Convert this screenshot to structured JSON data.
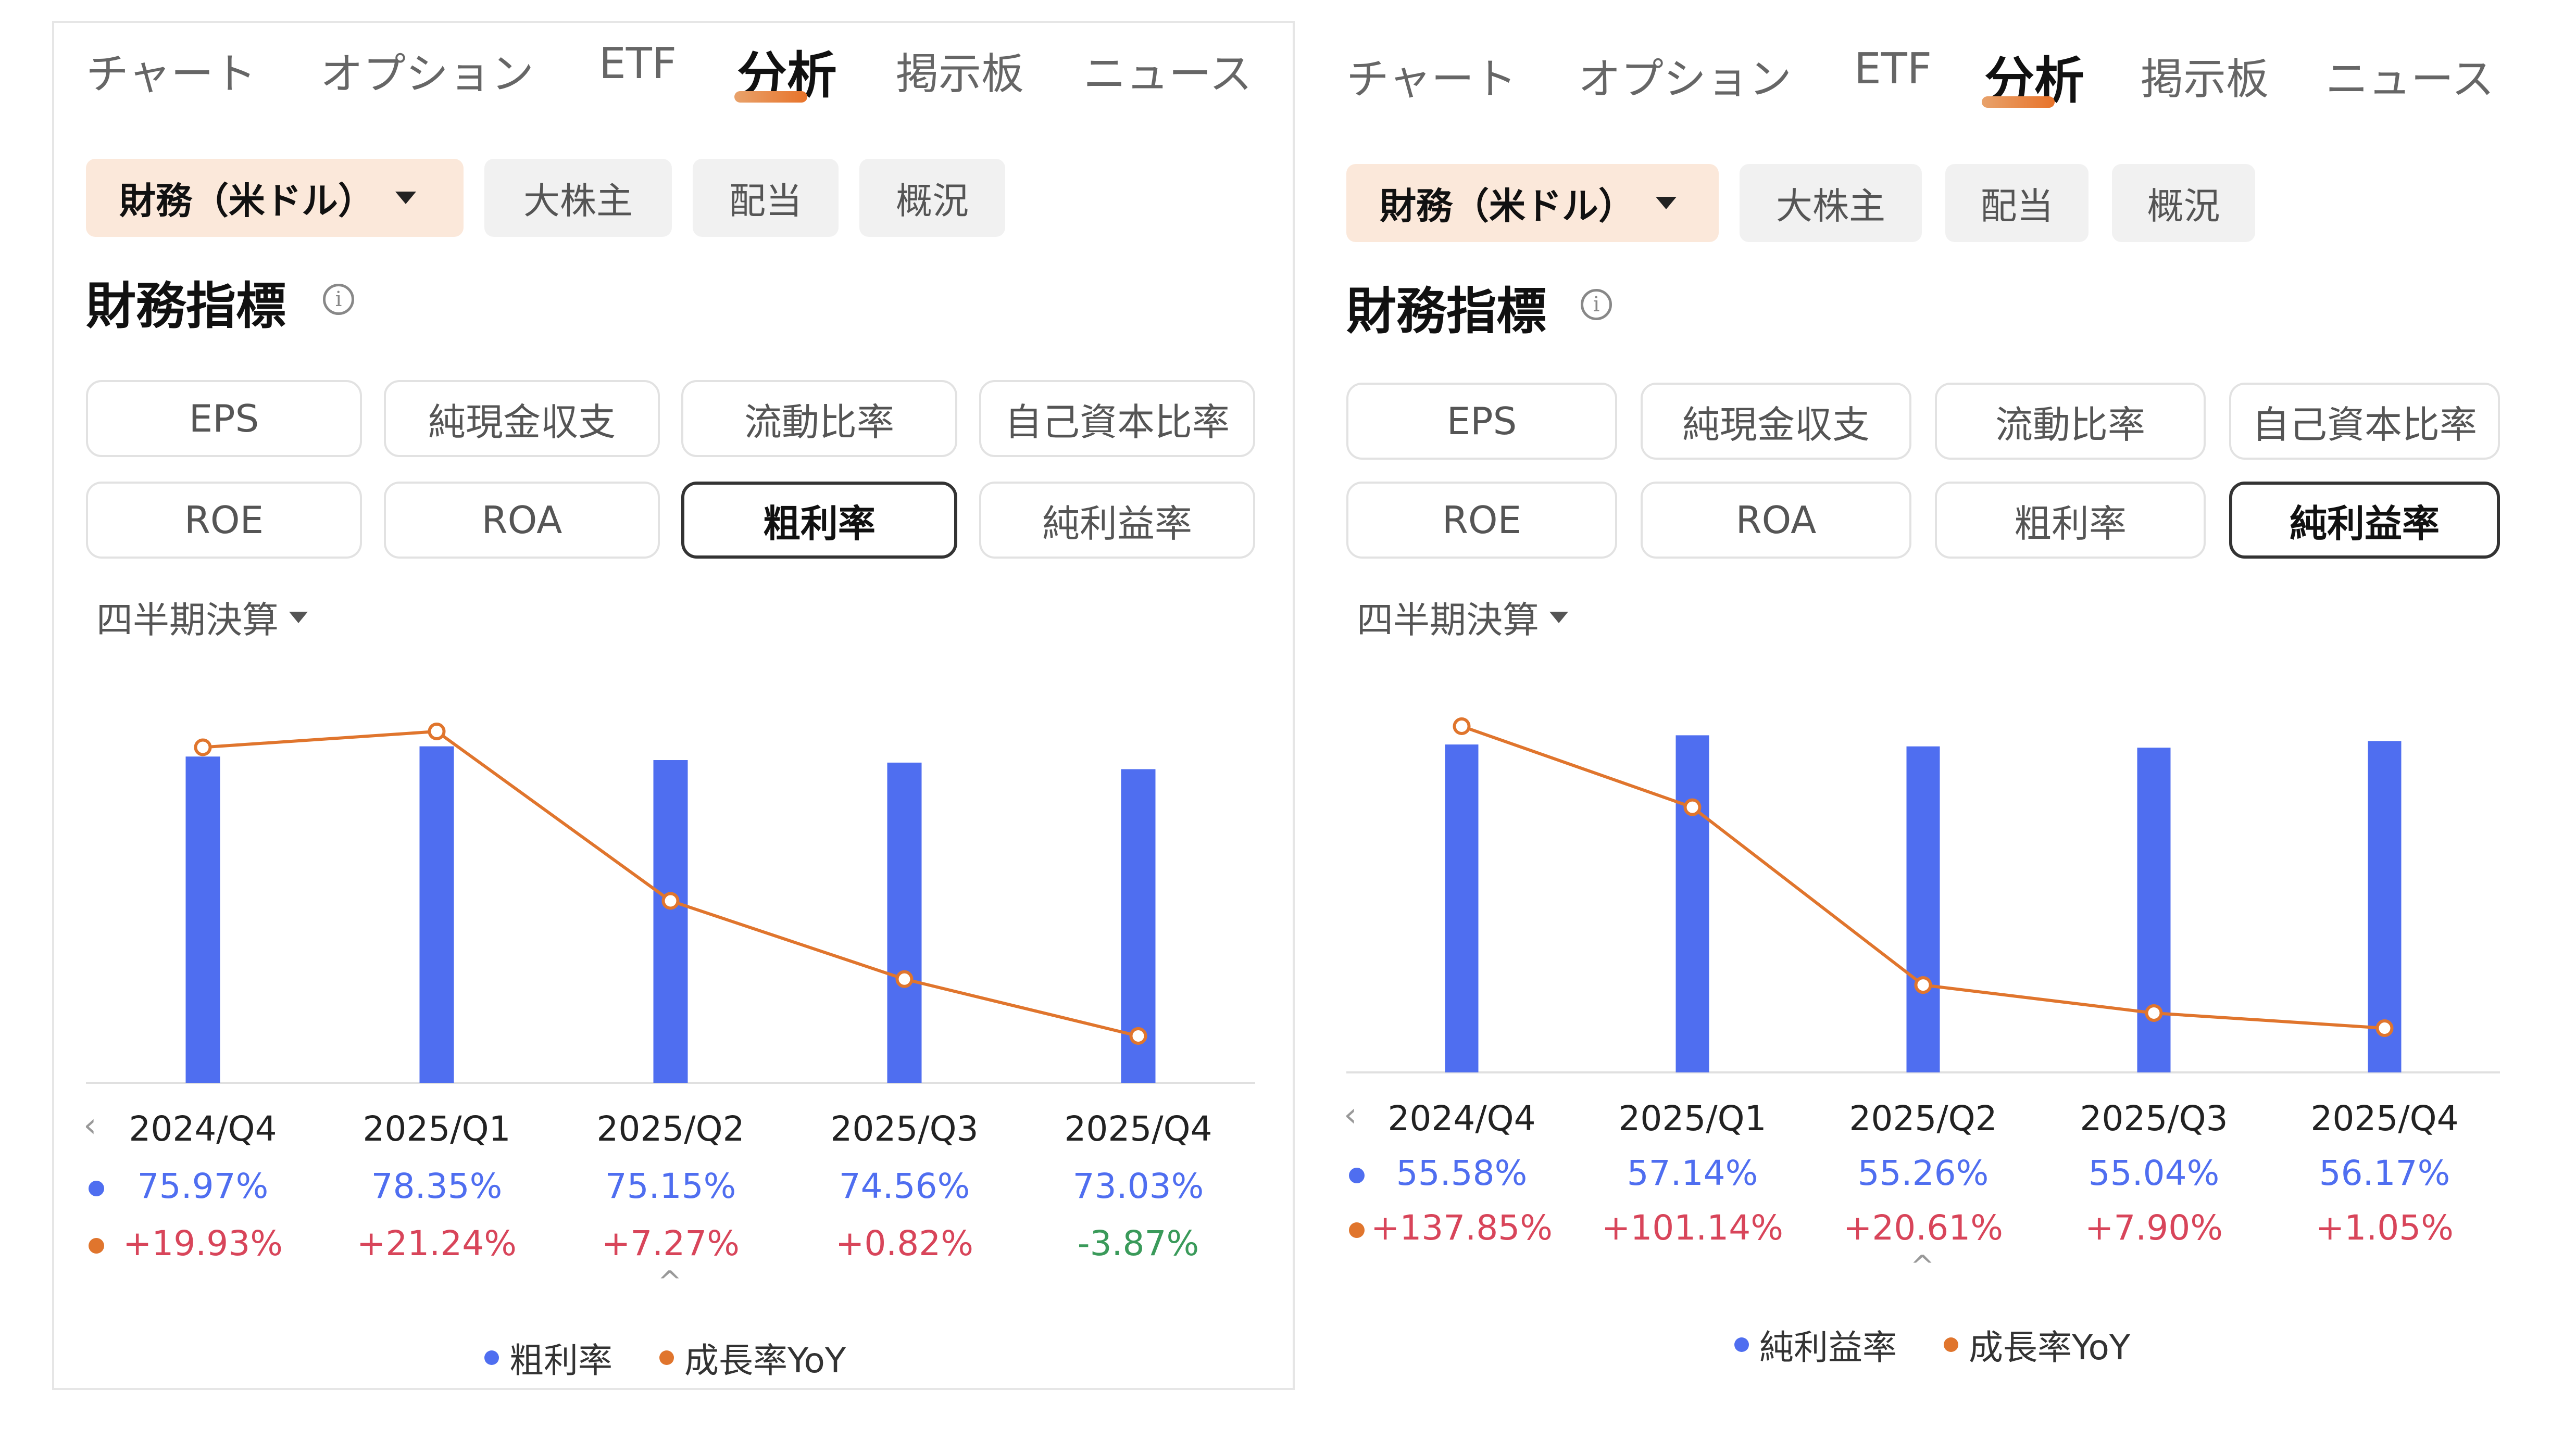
{
  "colors": {
    "bar": "#4f6ef0",
    "line": "#e0752d",
    "positive": "#d8455a",
    "negative": "#3a9a5a",
    "chip_selected_bg": "#fbe8da"
  },
  "panels": [
    {
      "tabs": [
        "チャート",
        "オプション",
        "ETF",
        "分析",
        "掲示板",
        "ニュース"
      ],
      "active_tab": "分析",
      "chips": [
        "財務（米ドル）",
        "大株主",
        "配当",
        "概況"
      ],
      "section_title": "財務指標",
      "metric_buttons": [
        "EPS",
        "純現金収支",
        "流動比率",
        "自己資本比率",
        "ROE",
        "ROA",
        "粗利率",
        "純利益率"
      ],
      "active_metric": "粗利率",
      "period_selector": "四半期決算",
      "chart_data": {
        "type": "bar",
        "categories": [
          "2024/Q4",
          "2025/Q1",
          "2025/Q2",
          "2025/Q3",
          "2025/Q4"
        ],
        "series": [
          {
            "name": "粗利率",
            "values": [
              75.97,
              78.35,
              75.15,
              74.56,
              73.03
            ],
            "display": [
              "75.97%",
              "78.35%",
              "75.15%",
              "74.56%",
              "73.03%"
            ],
            "color": "#4f6ef0"
          },
          {
            "name": "成長率YoY",
            "values": [
              19.93,
              21.24,
              7.27,
              0.82,
              -3.87
            ],
            "display": [
              "+19.93%",
              "+21.24%",
              "+7.27%",
              "+0.82%",
              "-3.87%"
            ],
            "color": "#e0752d",
            "type": "line"
          }
        ],
        "legend": [
          "粗利率",
          "成長率YoY"
        ]
      }
    },
    {
      "tabs": [
        "チャート",
        "オプション",
        "ETF",
        "分析",
        "掲示板",
        "ニュース"
      ],
      "active_tab": "分析",
      "chips": [
        "財務（米ドル）",
        "大株主",
        "配当",
        "概況"
      ],
      "section_title": "財務指標",
      "metric_buttons": [
        "EPS",
        "純現金収支",
        "流動比率",
        "自己資本比率",
        "ROE",
        "ROA",
        "粗利率",
        "純利益率"
      ],
      "active_metric": "純利益率",
      "period_selector": "四半期決算",
      "chart_data": {
        "type": "bar",
        "categories": [
          "2024/Q4",
          "2025/Q1",
          "2025/Q2",
          "2025/Q3",
          "2025/Q4"
        ],
        "series": [
          {
            "name": "純利益率",
            "values": [
              55.58,
              57.14,
              55.26,
              55.04,
              56.17
            ],
            "display": [
              "55.58%",
              "57.14%",
              "55.26%",
              "55.04%",
              "56.17%"
            ],
            "color": "#4f6ef0"
          },
          {
            "name": "成長率YoY",
            "values": [
              137.85,
              101.14,
              20.61,
              7.9,
              1.05
            ],
            "display": [
              "+137.85%",
              "+101.14%",
              "+20.61%",
              "+7.90%",
              "+1.05%"
            ],
            "color": "#e0752d",
            "type": "line"
          }
        ],
        "legend": [
          "純利益率",
          "成長率YoY"
        ]
      }
    }
  ]
}
